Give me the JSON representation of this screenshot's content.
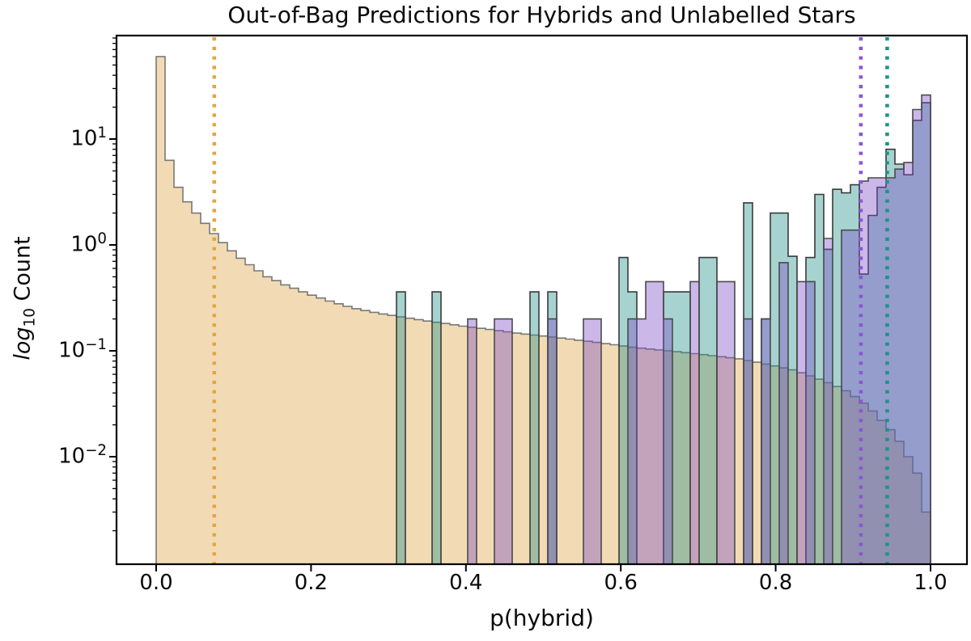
{
  "title": "Out-of-Bag Predictions for Hybrids and Unlabelled Stars",
  "axes": {
    "xlabel": "p(hybrid)",
    "ylabel_italic": "log",
    "ylabel_sub": "10",
    "ylabel_rest": " Count",
    "xticks": [
      {
        "v": 0.0,
        "label": "0.0"
      },
      {
        "v": 0.2,
        "label": "0.2"
      },
      {
        "v": 0.4,
        "label": "0.4"
      },
      {
        "v": 0.6,
        "label": "0.6"
      },
      {
        "v": 0.8,
        "label": "0.8"
      },
      {
        "v": 1.0,
        "label": "1.0"
      }
    ],
    "yticks": [
      {
        "log": 1,
        "base": "10",
        "exp": "1"
      },
      {
        "log": 0,
        "base": "10",
        "exp": "0"
      },
      {
        "log": -1,
        "base": "10",
        "exp": "−1"
      },
      {
        "log": -2,
        "base": "10",
        "exp": "−2"
      }
    ]
  },
  "chart_data": {
    "type": "bar",
    "subtype": "overlaid-step-histograms",
    "title": "Out-of-Bag Predictions for Hybrids and Unlabelled Stars",
    "xlabel": "p(hybrid)",
    "ylabel": "log10 Count",
    "yscale": "log",
    "xlim": [
      -0.051,
      1.051
    ],
    "ylim": [
      0.00097,
      102
    ],
    "grid": false,
    "legend": "none",
    "bins": {
      "start": 0.0,
      "width": 0.0114943,
      "count": 87
    },
    "series": [
      {
        "name": "orange",
        "fill_color": "#DEA543",
        "fill_opacity": 0.4,
        "edge_color": "#787878",
        "values": [
          60,
          6.3,
          3.5,
          2.55,
          2.0,
          1.6,
          1.28,
          1.05,
          0.88,
          0.75,
          0.65,
          0.57,
          0.5,
          0.46,
          0.42,
          0.39,
          0.36,
          0.335,
          0.315,
          0.295,
          0.278,
          0.263,
          0.25,
          0.24,
          0.231,
          0.223,
          0.216,
          0.209,
          0.203,
          0.197,
          0.191,
          0.186,
          0.181,
          0.176,
          0.171,
          0.167,
          0.163,
          0.159,
          0.155,
          0.151,
          0.147,
          0.144,
          0.141,
          0.138,
          0.135,
          0.132,
          0.129,
          0.126,
          0.123,
          0.12,
          0.117,
          0.114,
          0.111,
          0.108,
          0.106,
          0.104,
          0.102,
          0.1,
          0.098,
          0.096,
          0.094,
          0.092,
          0.09,
          0.088,
          0.086,
          0.084,
          0.081,
          0.078,
          0.075,
          0.072,
          0.069,
          0.066,
          0.062,
          0.058,
          0.054,
          0.05,
          0.046,
          0.042,
          0.037,
          0.032,
          0.027,
          0.022,
          0.018,
          0.014,
          0.01,
          0.007,
          0.003
        ]
      },
      {
        "name": "teal",
        "fill_color": "#219186",
        "fill_opacity": 0.4,
        "edge_color": "#3A3A3A",
        "values": [
          0,
          0,
          0,
          0,
          0,
          0,
          0,
          0,
          0,
          0,
          0,
          0,
          0,
          0,
          0,
          0,
          0,
          0,
          0,
          0,
          0,
          0,
          0,
          0,
          0,
          0,
          0,
          0.36,
          0,
          0,
          0,
          0.36,
          0,
          0,
          0,
          0,
          0,
          0,
          0,
          0,
          0,
          0,
          0.36,
          0,
          0.36,
          0,
          0,
          0,
          0,
          0,
          0,
          0,
          0.76,
          0.36,
          0,
          0,
          0,
          0.36,
          0.36,
          0.36,
          0,
          0.76,
          0.76,
          0,
          0,
          0,
          2.5,
          0,
          0.2,
          2.0,
          2.0,
          0.78,
          0,
          0.76,
          3.0,
          0.91,
          3.35,
          3.1,
          3.7,
          0.53,
          1.9,
          3.5,
          8.0,
          5.8,
          4.6,
          15,
          22
        ]
      },
      {
        "name": "purple",
        "fill_color": "#7D4EC8",
        "fill_opacity": 0.4,
        "edge_color": "#4A4A4A",
        "values": [
          0,
          0,
          0,
          0,
          0,
          0,
          0,
          0,
          0,
          0,
          0,
          0,
          0,
          0,
          0,
          0,
          0,
          0,
          0,
          0,
          0,
          0,
          0,
          0,
          0,
          0,
          0,
          0,
          0,
          0,
          0,
          0,
          0,
          0,
          0,
          0.2,
          0,
          0,
          0.2,
          0.2,
          0,
          0,
          0,
          0,
          0.2,
          0,
          0,
          0,
          0.2,
          0.2,
          0,
          0,
          0,
          0.2,
          0.2,
          0.45,
          0.45,
          0.2,
          0,
          0,
          0.45,
          0,
          0,
          0.45,
          0.45,
          0,
          0.2,
          0,
          0.2,
          0,
          0.68,
          0,
          0.45,
          0.45,
          0,
          1.15,
          0,
          1.38,
          1.38,
          4.0,
          4.3,
          4.3,
          4.3,
          5.2,
          6.0,
          19,
          26
        ]
      }
    ],
    "vlines": [
      {
        "x": 0.075,
        "color": "#DFA846",
        "style": "dotted"
      },
      {
        "x": 0.91,
        "color": "#8A56D6",
        "style": "dotted"
      },
      {
        "x": 0.944,
        "color": "#1F9387",
        "style": "dotted"
      }
    ]
  }
}
